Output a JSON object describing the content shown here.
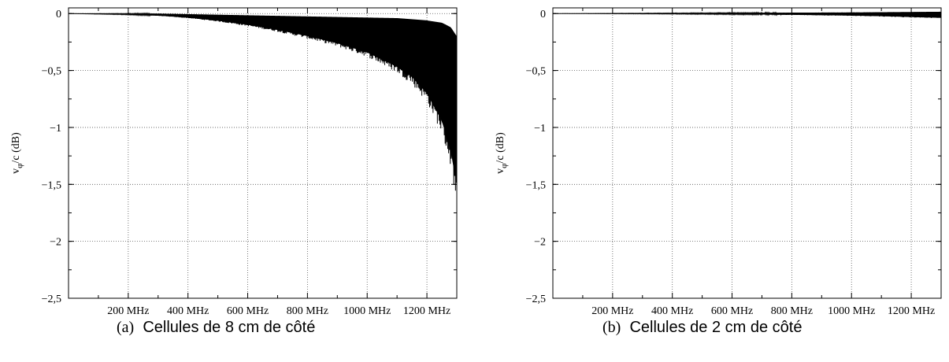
{
  "chart_data": [
    {
      "type": "line",
      "panel": "a",
      "ylabel_main": "v",
      "ylabel_sub": "φ",
      "ylabel_tail": "/c (dB)",
      "ylim": [
        -2.5,
        0.05
      ],
      "xlim": [
        0,
        1300
      ],
      "y_ticks": [
        {
          "value": 0,
          "label": "0"
        },
        {
          "value": -0.5,
          "label": "−0,5"
        },
        {
          "value": -1,
          "label": "−1"
        },
        {
          "value": -1.5,
          "label": "−1,5"
        },
        {
          "value": -2,
          "label": "−2"
        },
        {
          "value": -2.5,
          "label": "−2,5"
        }
      ],
      "x_ticks": [
        {
          "value": 200,
          "label": "200 MHz"
        },
        {
          "value": 400,
          "label": "400 MHz"
        },
        {
          "value": 600,
          "label": "600 MHz"
        },
        {
          "value": 800,
          "label": "800 MHz"
        },
        {
          "value": 1000,
          "label": "1000 MHz"
        },
        {
          "value": 1200,
          "label": "1200 MHz"
        }
      ],
      "grid": true,
      "series_color": "#000000",
      "envelope_x": [
        0,
        100,
        200,
        300,
        400,
        500,
        600,
        700,
        800,
        900,
        1000,
        1100,
        1150,
        1200,
        1250,
        1280,
        1300
      ],
      "envelope_min": [
        0,
        -0.005,
        -0.01,
        -0.02,
        -0.04,
        -0.07,
        -0.11,
        -0.16,
        -0.22,
        -0.29,
        -0.38,
        -0.52,
        -0.62,
        -0.78,
        -1.05,
        -1.35,
        -1.68
      ],
      "envelope_max": [
        0,
        0,
        0,
        0,
        -0.005,
        -0.01,
        -0.015,
        -0.02,
        -0.025,
        -0.03,
        -0.035,
        -0.04,
        -0.05,
        -0.06,
        -0.08,
        -0.12,
        -0.2
      ],
      "caption_tag": "(a)",
      "caption_text": "Cellules de 8 cm de côté"
    },
    {
      "type": "line",
      "panel": "b",
      "ylabel_main": "v",
      "ylabel_sub": "φ",
      "ylabel_tail": "/c (dB)",
      "ylim": [
        -2.5,
        0.05
      ],
      "xlim": [
        0,
        1300
      ],
      "y_ticks": [
        {
          "value": 0,
          "label": "0"
        },
        {
          "value": -0.5,
          "label": "−0,5"
        },
        {
          "value": -1,
          "label": "−1"
        },
        {
          "value": -1.5,
          "label": "−1,5"
        },
        {
          "value": -2,
          "label": "−2"
        },
        {
          "value": -2.5,
          "label": "−2,5"
        }
      ],
      "x_ticks": [
        {
          "value": 200,
          "label": "200 MHz"
        },
        {
          "value": 400,
          "label": "400 MHz"
        },
        {
          "value": 600,
          "label": "600 MHz"
        },
        {
          "value": 800,
          "label": "800 MHz"
        },
        {
          "value": 1000,
          "label": "1000 MHz"
        },
        {
          "value": 1200,
          "label": "1200 MHz"
        }
      ],
      "grid": true,
      "series_color": "#000000",
      "envelope_x": [
        0,
        200,
        400,
        600,
        800,
        1000,
        1100,
        1200,
        1300
      ],
      "envelope_min": [
        0,
        -0.002,
        -0.004,
        -0.007,
        -0.012,
        -0.02,
        -0.026,
        -0.034,
        -0.042
      ],
      "envelope_max": [
        0,
        0.002,
        0.004,
        0.006,
        0.008,
        0.01,
        0.012,
        0.014,
        0.016
      ],
      "caption_tag": "(b)",
      "caption_text": "Cellules de 2 cm de côté"
    }
  ]
}
